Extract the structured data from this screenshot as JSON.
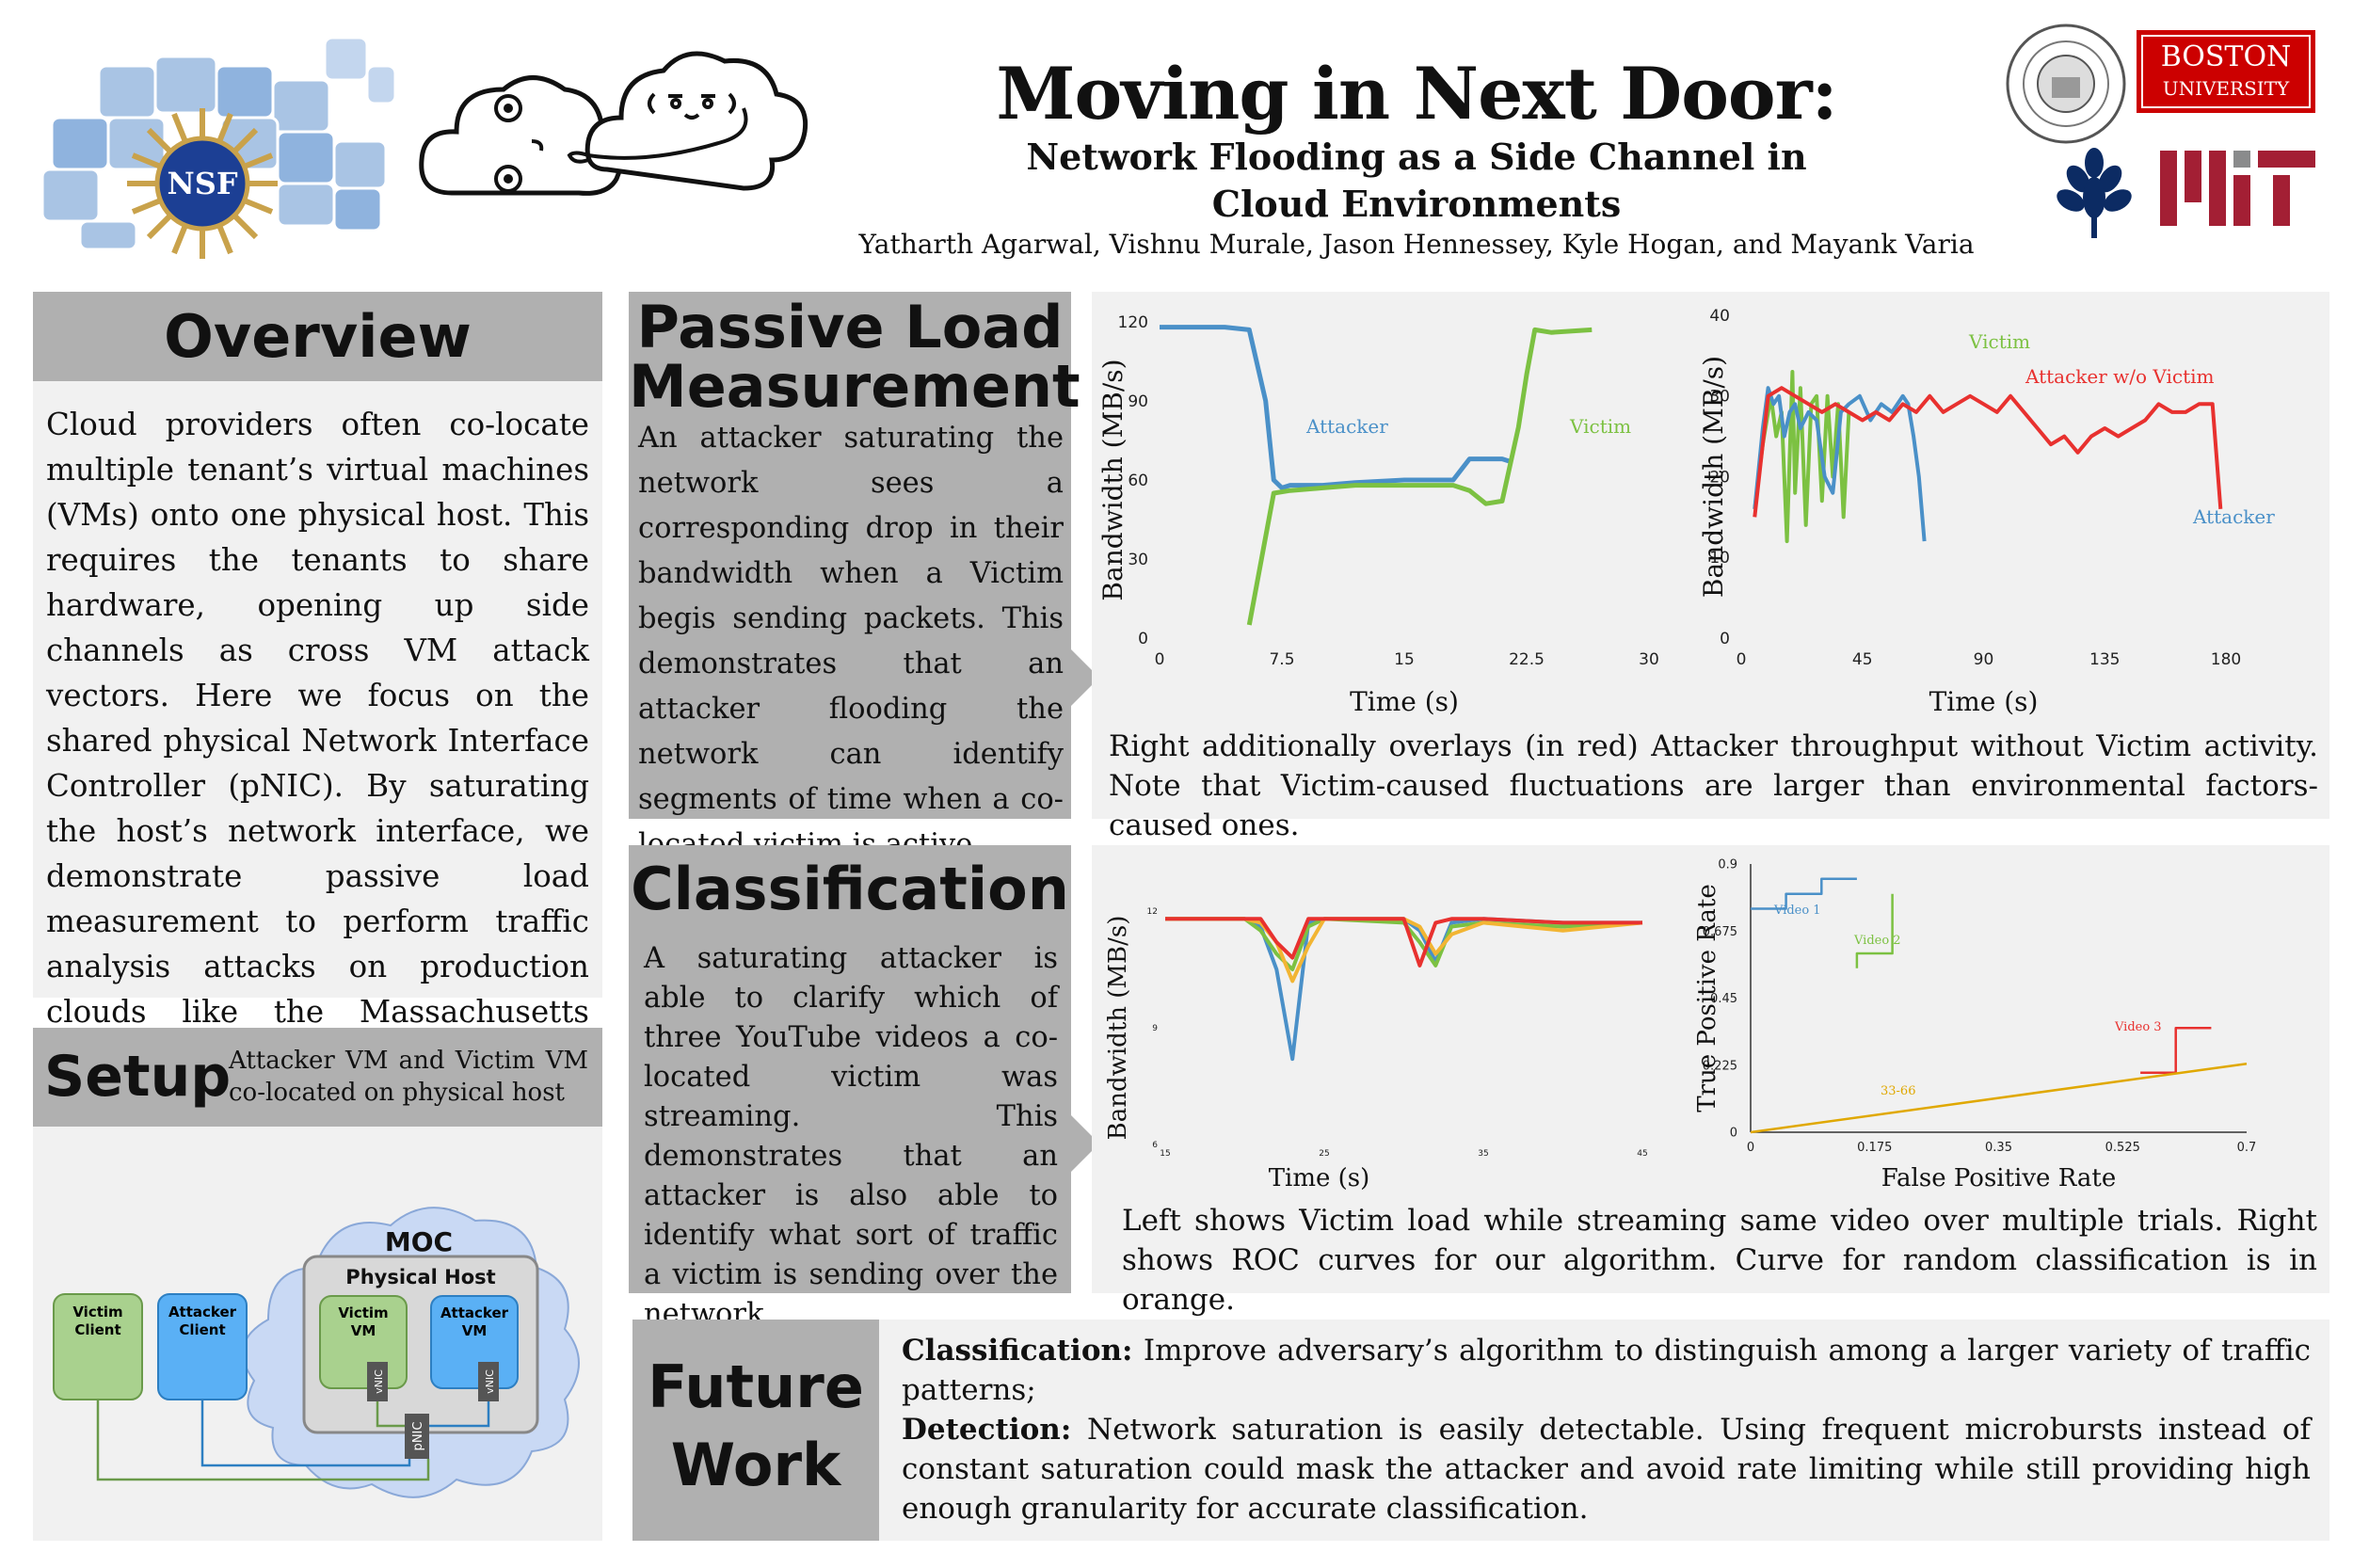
{
  "header": {
    "title": "Moving in Next Door:",
    "subtitle": "Network Flooding as a Side Channel in Cloud Environments",
    "authors": "Yatharth Agarwal, Vishnu Murale, Jason Hennessey, Kyle Hogan, and Mayank Varia",
    "logos": {
      "nsf": "NSF",
      "bu_line1": "BOSTON",
      "bu_line2": "UNIVERSITY"
    }
  },
  "overview": {
    "heading": "Overview",
    "body": "Cloud providers often co-locate multiple tenant’s virtual machines (VMs) onto one physical host. This requires the tenants to share hardware, opening up side channels as cross VM attack vectors. Here we focus on the shared physical Network Interface Controller (pNIC). By saturating the host’s network interface, we demonstrate passive load measurement to perform traffic analysis attacks on production clouds like the Massachusetts Open Cloud (MOC)."
  },
  "setup": {
    "heading": "Setup",
    "caption": "Attacker VM and Victim VM co-located on physical host",
    "diagram": {
      "cloud_label": "MOC",
      "host_label": "Physical Host",
      "victim_client": [
        "Victim",
        "Client"
      ],
      "attacker_client": [
        "Attacker",
        "Client"
      ],
      "victim_vm": [
        "Victim",
        "VM"
      ],
      "attacker_vm": [
        "Attacker",
        "VM"
      ],
      "vnic": "vNIC",
      "pnic": "pNIC"
    },
    "colors": {
      "green": "#a9d18e",
      "blue": "#5ab0f5",
      "cloud": "#c9d9f4"
    }
  },
  "passive": {
    "heading_line1": "Passive Load",
    "heading_line2": "Measurement",
    "body": "An attacker saturating the network sees a corresponding drop in their bandwidth when a Victim begis sending packets. This demonstrates that an attacker flooding the network can identify segments of time when a co-located victim is active.",
    "caption": "Right additionally overlays (in red) Attacker throughput without Victim activity. Note that Victim-caused fluctuations are larger than environmental factors-caused ones."
  },
  "classification": {
    "heading": "Classification",
    "body": "A saturating attacker is able to clarify which of three YouTube videos a co-located victim was streaming. This demonstrates that an attacker is also able to identify what sort of traffic a victim is sending over the network.",
    "caption": "Left shows Victim load while streaming same video over multiple trials. Right shows ROC curves for our algorithm. Curve for random classification is in orange."
  },
  "future": {
    "heading_line1": "Future",
    "heading_line2": "Work",
    "item1_label": "Classification:",
    "item1_text": " Improve adversary’s algorithm to distinguish among a larger variety of traffic patterns;",
    "item2_label": "Detection:",
    "item2_text": " Network saturation is easily detectable. Using frequent microbursts instead of constant saturation could mask the attacker and avoid rate limiting while still providing high enough granularity for accurate classification."
  },
  "chart_data": [
    {
      "type": "line",
      "xlabel": "Time (s)",
      "ylabel": "Bandwidth (MB/s)",
      "xlim": [
        0,
        30
      ],
      "ylim": [
        0,
        120
      ],
      "xticks": [
        "0",
        "7.5",
        "15",
        "22.5",
        "30"
      ],
      "yticks": [
        "0",
        "30",
        "60",
        "90",
        "120"
      ],
      "colors": {
        "Attacker": "#4a90c8",
        "Victim": "#7cc142"
      },
      "series": [
        {
          "name": "Attacker",
          "x": [
            0,
            4,
            5.5,
            6.5,
            7,
            7.5,
            8,
            10,
            12,
            15,
            18,
            19,
            20,
            21,
            21.5
          ],
          "y": [
            118,
            118,
            117,
            90,
            60,
            57,
            58,
            58,
            59,
            60,
            60,
            68,
            68,
            68,
            67
          ]
        },
        {
          "name": "Victim",
          "x": [
            5.5,
            7,
            8,
            10,
            12,
            15,
            18,
            19,
            20,
            21,
            22,
            22.5,
            23,
            24,
            26.5
          ],
          "y": [
            5,
            55,
            56,
            57,
            58,
            58,
            58,
            56,
            51,
            52,
            80,
            100,
            117,
            116,
            117
          ]
        }
      ]
    },
    {
      "type": "line",
      "xlabel": "Time (s)",
      "ylabel": "Bandwidth (MB/s)",
      "xlim": [
        0,
        180
      ],
      "ylim": [
        0,
        40
      ],
      "xticks": [
        "0",
        "45",
        "90",
        "135",
        "180"
      ],
      "yticks": [
        "0",
        "10",
        "20",
        "30",
        "40"
      ],
      "colors": {
        "Attacker": "#4a90c8",
        "Victim": "#7cc142",
        "Attacker w/o Victim": "#e8312f"
      },
      "series": [
        {
          "name": "Victim",
          "x": [
            5,
            8,
            11,
            13,
            15,
            17,
            19,
            20,
            22,
            24,
            26,
            28,
            30,
            32,
            34,
            36,
            38,
            40
          ],
          "y": [
            16,
            24,
            30,
            25,
            28,
            12,
            33,
            18,
            31,
            14,
            29,
            30,
            17,
            30,
            20,
            29,
            15,
            28
          ]
        },
        {
          "name": "Attacker",
          "x": [
            5,
            8,
            10,
            12,
            14,
            16,
            18,
            20,
            22,
            25,
            28,
            31,
            34,
            37,
            40,
            44,
            48,
            52,
            56,
            60,
            62,
            64,
            66,
            68
          ],
          "y": [
            16,
            26,
            31,
            29,
            30,
            25,
            28,
            29,
            26,
            28,
            27,
            20,
            18,
            28,
            29,
            30,
            27,
            29,
            28,
            30,
            29,
            25,
            20,
            12
          ]
        },
        {
          "name": "Attacker w/o Victim",
          "x": [
            5,
            10,
            15,
            20,
            25,
            30,
            35,
            40,
            45,
            50,
            55,
            60,
            65,
            70,
            75,
            80,
            85,
            90,
            95,
            100,
            105,
            110,
            115,
            120,
            125,
            130,
            135,
            140,
            145,
            150,
            155,
            160,
            165,
            170,
            175,
            178
          ],
          "y": [
            15,
            30,
            31,
            30,
            29,
            28,
            29,
            28,
            27,
            28,
            27,
            29,
            28,
            30,
            28,
            29,
            30,
            29,
            28,
            30,
            28,
            26,
            24,
            25,
            23,
            25,
            26,
            25,
            26,
            27,
            29,
            28,
            28,
            29,
            29,
            16
          ]
        }
      ]
    },
    {
      "type": "line",
      "xlabel": "Time (s)",
      "ylabel": "Bandwidth (MB/s)",
      "xlim": [
        15,
        45
      ],
      "ylim": [
        6,
        12
      ],
      "xticks": [
        "15",
        "25",
        "35",
        "45"
      ],
      "yticks": [
        "6",
        "9",
        "12"
      ],
      "series": [
        {
          "name": "",
          "color": "#4a90c8",
          "x": [
            15,
            20,
            21,
            22,
            23,
            24,
            25,
            30,
            31,
            32,
            33,
            35,
            40,
            45
          ],
          "y": [
            11.8,
            11.8,
            11.6,
            10.5,
            8.2,
            11.7,
            11.8,
            11.8,
            11.5,
            10.7,
            11.7,
            11.8,
            11.7,
            11.7
          ]
        },
        {
          "name": "",
          "color": "#7cc142",
          "x": [
            15,
            20,
            21,
            22,
            23,
            24,
            25,
            30,
            31,
            32,
            33,
            35,
            40,
            45
          ],
          "y": [
            11.8,
            11.8,
            11.5,
            10.9,
            10.5,
            11.6,
            11.8,
            11.7,
            11.2,
            10.6,
            11.6,
            11.7,
            11.6,
            11.7
          ]
        },
        {
          "name": "",
          "color": "#f2b533",
          "x": [
            15,
            20,
            21,
            22,
            23,
            24,
            25,
            30,
            31,
            32,
            33,
            35,
            40,
            45
          ],
          "y": [
            11.8,
            11.8,
            11.7,
            11.2,
            10.2,
            11.1,
            11.8,
            11.8,
            11.6,
            10.9,
            11.4,
            11.7,
            11.5,
            11.7
          ]
        },
        {
          "name": "",
          "color": "#e8312f",
          "x": [
            15,
            20,
            21,
            22,
            23,
            24,
            25,
            30,
            31,
            32,
            33,
            35,
            40,
            45
          ],
          "y": [
            11.8,
            11.8,
            11.8,
            11.2,
            10.8,
            11.8,
            11.8,
            11.8,
            10.6,
            11.7,
            11.8,
            11.8,
            11.7,
            11.7
          ]
        }
      ]
    },
    {
      "type": "line",
      "xlabel": "False Positive Rate",
      "ylabel": "True Positive Rate",
      "xlim": [
        0,
        0.7
      ],
      "ylim": [
        0,
        0.9
      ],
      "xticks": [
        "0",
        "0.175",
        "0.35",
        "0.525",
        "0.7"
      ],
      "yticks": [
        "0",
        "0.225",
        "0.45",
        "0.675",
        "0.9"
      ],
      "series": [
        {
          "name": "Video 1",
          "color": "#4a90c8",
          "x": [
            0,
            0.05,
            0.05,
            0.1,
            0.1,
            0.15
          ],
          "y": [
            0.75,
            0.75,
            0.8,
            0.8,
            0.85,
            0.85
          ]
        },
        {
          "name": "Video 2",
          "color": "#7cc142",
          "x": [
            0.15,
            0.15,
            0.2,
            0.2
          ],
          "y": [
            0.55,
            0.6,
            0.6,
            0.8
          ]
        },
        {
          "name": "Video 3",
          "color": "#e8312f",
          "x": [
            0.55,
            0.6,
            0.6,
            0.65
          ],
          "y": [
            0.2,
            0.2,
            0.35,
            0.35
          ]
        },
        {
          "name": "33-66",
          "color": "#e0a800",
          "x": [
            0,
            0.7
          ],
          "y": [
            0,
            0.23
          ]
        }
      ]
    }
  ]
}
